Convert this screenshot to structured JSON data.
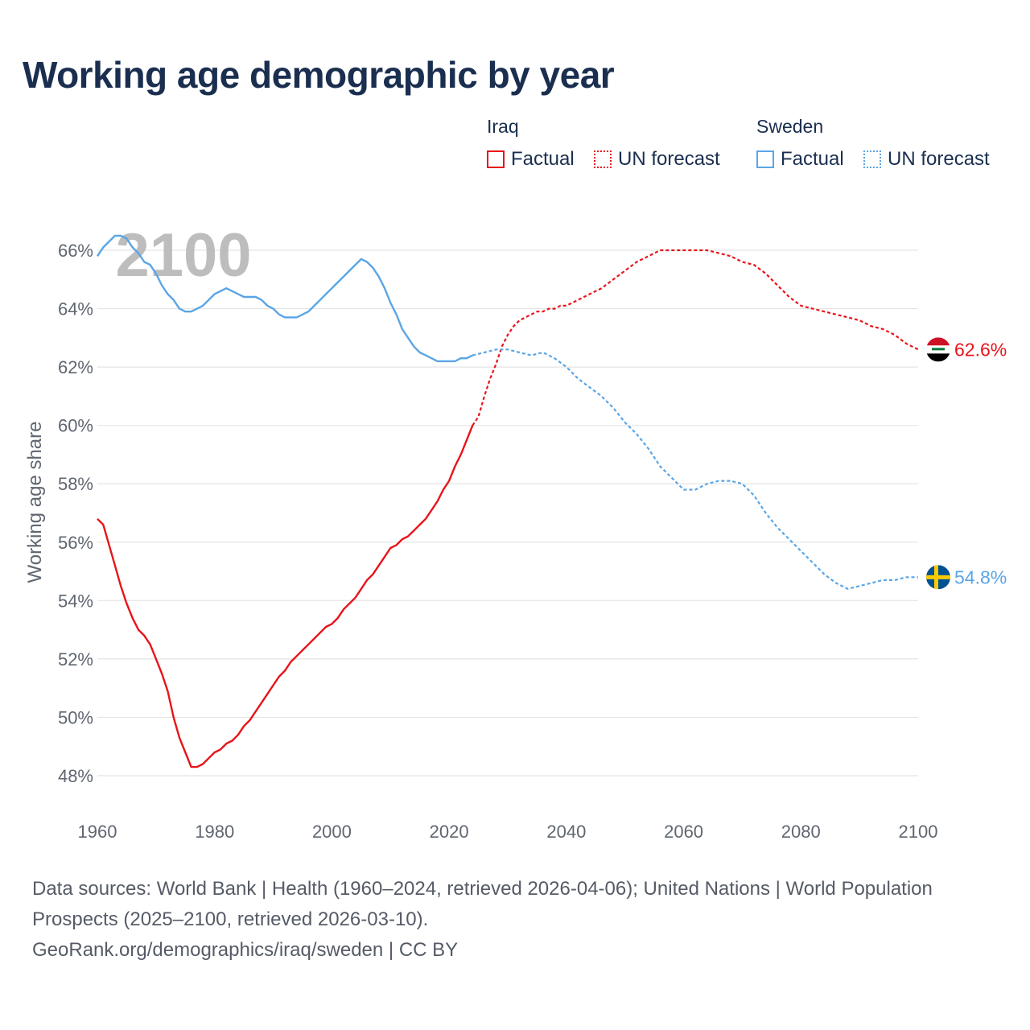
{
  "title": "Working age demographic by year",
  "legend": {
    "groups": [
      {
        "name": "Iraq",
        "factual_label": "Factual",
        "forecast_label": "UN forecast"
      },
      {
        "name": "Sweden",
        "factual_label": "Factual",
        "forecast_label": "UN forecast"
      }
    ]
  },
  "colors": {
    "iraq": "#e8141a",
    "sweden": "#5aa5e6",
    "grid": "#e4e4e4",
    "axis_text": "#5f6670",
    "year_watermark": "#bdbdbd"
  },
  "year_display": "2100",
  "footer": {
    "sources": "Data sources: World Bank | Health (1960–2024, retrieved 2026-04-06); United Nations | World Population Prospects (2025–2100, retrieved 2026-03-10).",
    "credit": "GeoRank.org/demographics/iraq/sweden | CC BY"
  },
  "chart_data": {
    "type": "line",
    "title": "Working age demographic by year",
    "xlabel": "",
    "ylabel": "Working age share",
    "xlim": [
      1960,
      2100
    ],
    "ylim": [
      47.5,
      67
    ],
    "x_ticks": [
      1960,
      1980,
      2000,
      2020,
      2040,
      2060,
      2080,
      2100
    ],
    "y_ticks": [
      48,
      50,
      52,
      54,
      56,
      58,
      60,
      62,
      64,
      66
    ],
    "y_tick_labels": [
      "48%",
      "50%",
      "52%",
      "54%",
      "56%",
      "58%",
      "60%",
      "62%",
      "64%",
      "66%"
    ],
    "x_tick_labels": [
      "1960",
      "1980",
      "2000",
      "2020",
      "2040",
      "2060",
      "2080",
      "2100"
    ],
    "grid": true,
    "series": [
      {
        "name": "Iraq",
        "key": "iraq",
        "color": "#e8141a",
        "end_label": "62.6%",
        "factual": {
          "x": [
            1960,
            1961,
            1962,
            1963,
            1964,
            1965,
            1966,
            1967,
            1968,
            1969,
            1970,
            1971,
            1972,
            1973,
            1974,
            1975,
            1976,
            1977,
            1978,
            1979,
            1980,
            1981,
            1982,
            1983,
            1984,
            1985,
            1986,
            1987,
            1988,
            1989,
            1990,
            1991,
            1992,
            1993,
            1994,
            1995,
            1996,
            1997,
            1998,
            1999,
            2000,
            2001,
            2002,
            2003,
            2004,
            2005,
            2006,
            2007,
            2008,
            2009,
            2010,
            2011,
            2012,
            2013,
            2014,
            2015,
            2016,
            2017,
            2018,
            2019,
            2020,
            2021,
            2022,
            2023,
            2024
          ],
          "y": [
            56.8,
            56.6,
            55.9,
            55.2,
            54.5,
            53.9,
            53.4,
            53.0,
            52.8,
            52.5,
            52.0,
            51.5,
            50.9,
            50.0,
            49.3,
            48.8,
            48.3,
            48.3,
            48.4,
            48.6,
            48.8,
            48.9,
            49.1,
            49.2,
            49.4,
            49.7,
            49.9,
            50.2,
            50.5,
            50.8,
            51.1,
            51.4,
            51.6,
            51.9,
            52.1,
            52.3,
            52.5,
            52.7,
            52.9,
            53.1,
            53.2,
            53.4,
            53.7,
            53.9,
            54.1,
            54.4,
            54.7,
            54.9,
            55.2,
            55.5,
            55.8,
            55.9,
            56.1,
            56.2,
            56.4,
            56.6,
            56.8,
            57.1,
            57.4,
            57.8,
            58.1,
            58.6,
            59.0,
            59.5,
            60.0
          ]
        },
        "forecast": {
          "x": [
            2024,
            2025,
            2026,
            2027,
            2028,
            2029,
            2030,
            2031,
            2032,
            2033,
            2034,
            2035,
            2036,
            2037,
            2038,
            2039,
            2040,
            2042,
            2044,
            2046,
            2048,
            2050,
            2052,
            2054,
            2056,
            2058,
            2060,
            2062,
            2064,
            2066,
            2068,
            2070,
            2072,
            2074,
            2076,
            2078,
            2080,
            2082,
            2084,
            2086,
            2088,
            2090,
            2092,
            2094,
            2096,
            2098,
            2100
          ],
          "y": [
            60.0,
            60.3,
            61.0,
            61.6,
            62.1,
            62.7,
            63.1,
            63.4,
            63.6,
            63.7,
            63.8,
            63.9,
            63.9,
            64.0,
            64.0,
            64.1,
            64.1,
            64.3,
            64.5,
            64.7,
            65.0,
            65.3,
            65.6,
            65.8,
            66.0,
            66.0,
            66.0,
            66.0,
            66.0,
            65.9,
            65.8,
            65.6,
            65.5,
            65.2,
            64.8,
            64.4,
            64.1,
            64.0,
            63.9,
            63.8,
            63.7,
            63.6,
            63.4,
            63.3,
            63.1,
            62.8,
            62.6
          ]
        }
      },
      {
        "name": "Sweden",
        "key": "sweden",
        "color": "#5aa5e6",
        "end_label": "54.8%",
        "factual": {
          "x": [
            1960,
            1961,
            1962,
            1963,
            1964,
            1965,
            1966,
            1967,
            1968,
            1969,
            1970,
            1971,
            1972,
            1973,
            1974,
            1975,
            1976,
            1977,
            1978,
            1979,
            1980,
            1981,
            1982,
            1983,
            1984,
            1985,
            1986,
            1987,
            1988,
            1989,
            1990,
            1991,
            1992,
            1993,
            1994,
            1995,
            1996,
            1997,
            1998,
            1999,
            2000,
            2001,
            2002,
            2003,
            2004,
            2005,
            2006,
            2007,
            2008,
            2009,
            2010,
            2011,
            2012,
            2013,
            2014,
            2015,
            2016,
            2017,
            2018,
            2019,
            2020,
            2021,
            2022,
            2023,
            2024
          ],
          "y": [
            65.8,
            66.1,
            66.3,
            66.5,
            66.5,
            66.4,
            66.1,
            65.9,
            65.6,
            65.5,
            65.2,
            64.8,
            64.5,
            64.3,
            64.0,
            63.9,
            63.9,
            64.0,
            64.1,
            64.3,
            64.5,
            64.6,
            64.7,
            64.6,
            64.5,
            64.4,
            64.4,
            64.4,
            64.3,
            64.1,
            64.0,
            63.8,
            63.7,
            63.7,
            63.7,
            63.8,
            63.9,
            64.1,
            64.3,
            64.5,
            64.7,
            64.9,
            65.1,
            65.3,
            65.5,
            65.7,
            65.6,
            65.4,
            65.1,
            64.7,
            64.2,
            63.8,
            63.3,
            63.0,
            62.7,
            62.5,
            62.4,
            62.3,
            62.2,
            62.2,
            62.2,
            62.2,
            62.3,
            62.3,
            62.4
          ]
        },
        "forecast": {
          "x": [
            2024,
            2026,
            2028,
            2030,
            2032,
            2034,
            2036,
            2038,
            2040,
            2042,
            2044,
            2046,
            2048,
            2050,
            2052,
            2054,
            2056,
            2058,
            2060,
            2062,
            2064,
            2066,
            2068,
            2070,
            2072,
            2074,
            2076,
            2078,
            2080,
            2082,
            2084,
            2086,
            2088,
            2090,
            2092,
            2094,
            2096,
            2098,
            2100
          ],
          "y": [
            62.4,
            62.5,
            62.6,
            62.6,
            62.5,
            62.4,
            62.5,
            62.3,
            62.0,
            61.6,
            61.3,
            61.0,
            60.6,
            60.1,
            59.7,
            59.2,
            58.6,
            58.2,
            57.8,
            57.8,
            58.0,
            58.1,
            58.1,
            58.0,
            57.6,
            57.0,
            56.5,
            56.1,
            55.7,
            55.3,
            54.9,
            54.6,
            54.4,
            54.5,
            54.6,
            54.7,
            54.7,
            54.8,
            54.8
          ]
        }
      }
    ]
  }
}
